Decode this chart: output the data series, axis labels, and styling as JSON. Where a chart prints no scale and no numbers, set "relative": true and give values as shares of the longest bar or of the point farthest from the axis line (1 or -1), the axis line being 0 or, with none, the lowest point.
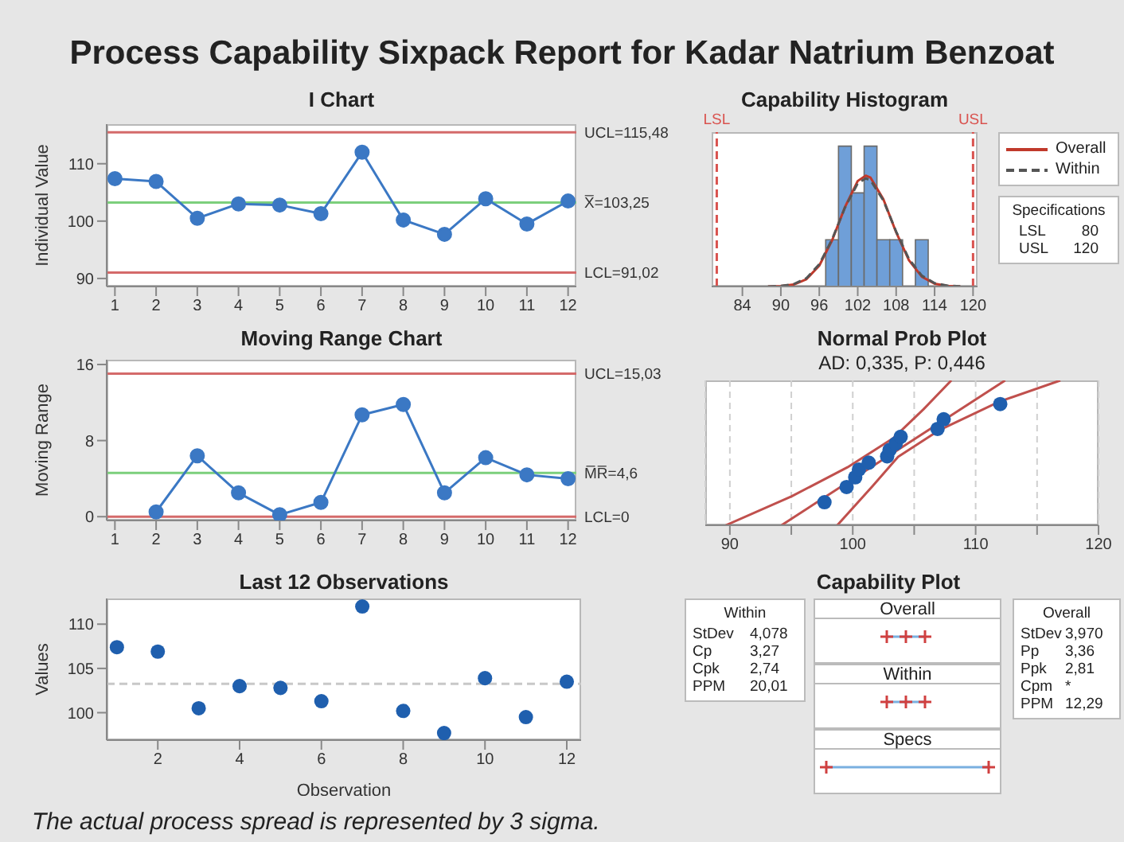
{
  "chart_data": [
    {
      "type": "other",
      "title": "Process Capability Sixpack Report for Kadar Natrium Benzoat",
      "annotations": [
        "The actual process spread is represented by 3 sigma."
      ]
    },
    {
      "type": "line",
      "title": "I Chart",
      "ylabel": "Individual Value",
      "x": [
        1,
        2,
        3,
        4,
        5,
        6,
        7,
        8,
        9,
        10,
        11,
        12
      ],
      "xlim": [
        0.8,
        12.2
      ],
      "xticks": [
        1,
        2,
        3,
        4,
        5,
        6,
        7,
        8,
        9,
        10,
        11,
        12
      ],
      "ylim": [
        88.6,
        116.9
      ],
      "yticks": [
        90,
        100,
        110
      ],
      "marker": "circle",
      "series": [
        {
          "color": "#3b78c4",
          "values": [
            107.4,
            106.9,
            100.5,
            103.0,
            102.8,
            101.3,
            112.0,
            100.2,
            97.7,
            103.9,
            99.5,
            103.5
          ]
        }
      ],
      "ref_lines": [
        {
          "axis": "y",
          "value": 115.48,
          "label": "UCL=115,48",
          "color": "#d46a6a"
        },
        {
          "axis": "y",
          "value": 103.25,
          "label": "X̅=103,25",
          "color": "#7ccf7c"
        },
        {
          "axis": "y",
          "value": 91.02,
          "label": "LCL=91,02",
          "color": "#d46a6a"
        }
      ]
    },
    {
      "type": "line",
      "title": "Moving Range Chart",
      "ylabel": "Moving Range",
      "x": [
        2,
        3,
        4,
        5,
        6,
        7,
        8,
        9,
        10,
        11,
        12
      ],
      "xlim": [
        0.8,
        12.2
      ],
      "xticks": [
        1,
        2,
        3,
        4,
        5,
        6,
        7,
        8,
        9,
        10,
        11,
        12
      ],
      "ylim": [
        -0.4,
        16.5
      ],
      "yticks": [
        0,
        8,
        16
      ],
      "marker": "circle",
      "series": [
        {
          "color": "#3b78c4",
          "values": [
            0.5,
            6.4,
            2.5,
            0.2,
            1.5,
            10.7,
            11.8,
            2.5,
            6.2,
            4.4,
            4.0
          ]
        }
      ],
      "ref_lines": [
        {
          "axis": "y",
          "value": 15.03,
          "label": "UCL=15,03",
          "color": "#d46a6a"
        },
        {
          "axis": "y",
          "value": 4.6,
          "label": "M̅R̅=4,6",
          "color": "#7ccf7c"
        },
        {
          "axis": "y",
          "value": 0,
          "label": "LCL=0",
          "color": "#d46a6a"
        }
      ]
    },
    {
      "type": "scatter",
      "title": "Last 12 Observations",
      "xlabel": "Observation",
      "ylabel": "Values",
      "x": [
        1,
        2,
        3,
        4,
        5,
        6,
        7,
        8,
        9,
        10,
        11,
        12
      ],
      "xlim": [
        0.75,
        12.35
      ],
      "xticks": [
        2,
        4,
        6,
        8,
        10,
        12
      ],
      "ylim": [
        96.9,
        112.9
      ],
      "yticks": [
        100,
        105,
        110
      ],
      "marker": "circle",
      "series": [
        {
          "color": "#1f5fae",
          "values": [
            107.4,
            106.9,
            100.5,
            103.0,
            102.8,
            101.3,
            112.0,
            100.2,
            97.7,
            103.9,
            99.5,
            103.5
          ]
        }
      ],
      "ref_lines": [
        {
          "axis": "y",
          "value": 103.25,
          "color": "#c8c8c8",
          "line_style": "dashed"
        }
      ]
    },
    {
      "type": "histogram",
      "title": "Capability Histogram",
      "relative": true,
      "bins": [
        97,
        99,
        101,
        103,
        105,
        107,
        109,
        111,
        113
      ],
      "values": [
        0.333,
        1,
        0.667,
        1,
        0.333,
        0.333,
        0,
        0.333
      ],
      "color": "#6f9fd8",
      "xlim": [
        79.2,
        120.7
      ],
      "xticks": [
        84,
        90,
        96,
        102,
        108,
        114,
        120
      ],
      "legend": "right",
      "series": [
        {
          "type": "line",
          "name": "Overall",
          "color": "#c0392b",
          "line_style": "solid",
          "marker": "none",
          "x": [
            88,
            90,
            92,
            94,
            96,
            98,
            100,
            102,
            103.25,
            104,
            106,
            108,
            110,
            112,
            114,
            116,
            118
          ],
          "values": [
            0.0005,
            0.003,
            0.014,
            0.052,
            0.149,
            0.329,
            0.565,
            0.752,
            0.79,
            0.776,
            0.622,
            0.386,
            0.186,
            0.07,
            0.02,
            0.0045,
            0.0008
          ]
        },
        {
          "type": "line",
          "name": "Within",
          "color": "#555555",
          "line_style": "dashed",
          "marker": "none",
          "x": [
            88,
            90,
            92,
            94,
            96,
            98,
            100,
            102,
            103.25,
            104,
            106,
            108,
            110,
            112,
            114,
            116,
            118
          ],
          "values": [
            0.0007,
            0.004,
            0.017,
            0.059,
            0.159,
            0.336,
            0.561,
            0.735,
            0.77,
            0.757,
            0.614,
            0.391,
            0.196,
            0.077,
            0.024,
            0.006,
            0.001
          ]
        }
      ],
      "ref_lines": [
        {
          "axis": "x",
          "value": 80,
          "label": "LSL",
          "color": "#d9534f",
          "line_style": "dashed"
        },
        {
          "axis": "x",
          "value": 120,
          "label": "USL",
          "color": "#d9534f",
          "line_style": "dashed"
        }
      ],
      "annotations": [
        "Specifications",
        "LSL",
        "80",
        "USL",
        "120"
      ]
    },
    {
      "type": "scatter",
      "title": "Normal Prob Plot",
      "subtitle": "AD: 0,335, P: 0,446",
      "relative": true,
      "xlim": [
        88,
        120
      ],
      "xticks": [
        90,
        {
          "value": 95,
          "label": null
        },
        100,
        {
          "value": 105,
          "label": null
        },
        110,
        {
          "value": 115,
          "label": null
        },
        120
      ],
      "tick_labels": "x",
      "grid": "x",
      "marker": "circle",
      "series": [
        {
          "type": "scatter",
          "color": "#1f5fae",
          "x": [
            97.7,
            99.5,
            100.2,
            100.5,
            101.3,
            102.8,
            103.0,
            103.5,
            103.9,
            106.9,
            107.4,
            112.0
          ],
          "values": [
            0.159,
            0.264,
            0.331,
            0.385,
            0.432,
            0.476,
            0.52,
            0.564,
            0.611,
            0.665,
            0.732,
            0.837
          ]
        },
        {
          "type": "line",
          "color": "#c0504d",
          "marker": "none",
          "x": [
            94.2,
            112.4
          ],
          "values": [
            0,
            1
          ]
        },
        {
          "type": "line",
          "color": "#c0504d",
          "marker": "none",
          "x": [
            89.67,
            95.03,
            99.57,
            103.28,
            105.75,
            108.02
          ],
          "values": [
            0,
            0.2,
            0.4,
            0.6,
            0.8,
            1
          ]
        },
        {
          "type": "line",
          "color": "#c0504d",
          "marker": "none",
          "x": [
            98.74,
            101.63,
            103.69,
            106.99,
            111.94,
            116.89
          ],
          "values": [
            0,
            0.272,
            0.472,
            0.654,
            0.854,
            1
          ]
        }
      ]
    },
    {
      "type": "other",
      "title": "Capability Plot",
      "annotations": [
        "Within",
        "StDev",
        "4,078",
        "Cp",
        "3,27",
        "Cpk",
        "2,74",
        "PPM",
        "20,01",
        "Overall",
        "Within",
        "Specs",
        "Overall",
        "StDev",
        "3,970",
        "Pp",
        "3,36",
        "Ppk",
        "2,81",
        "Cpm",
        "*",
        "PPM",
        "12,29"
      ]
    }
  ]
}
